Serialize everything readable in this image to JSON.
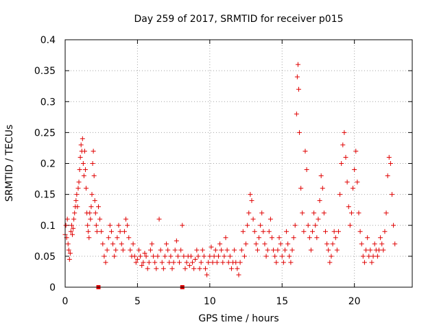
{
  "chart_data": {
    "type": "scatter",
    "title": "Day 259 of 2017, SRMTID for receiver p015",
    "xlabel": "GPS time / hours",
    "ylabel": "SRMTID / TECUs",
    "xlim": [
      0,
      24
    ],
    "ylim": [
      0,
      0.4
    ],
    "xticks": [
      0,
      5,
      10,
      15,
      20
    ],
    "yticks": [
      0,
      0.05,
      0.1,
      0.15,
      0.2,
      0.25,
      0.3,
      0.35,
      0.4
    ],
    "xtick_labels": [
      "0",
      "5",
      "10",
      "15",
      "20"
    ],
    "ytick_labels": [
      "0",
      "0.05",
      "0.1",
      "0.15",
      "0.2",
      "0.25",
      "0.3",
      "0.35",
      "0.4"
    ],
    "grid": true,
    "marker": "+",
    "color": "#e00000",
    "zero_markers_x": [
      2.3,
      8.1
    ],
    "series": [
      {
        "name": "p015",
        "points": [
          [
            0.0,
            0.085
          ],
          [
            0.05,
            0.1
          ],
          [
            0.1,
            0.08
          ],
          [
            0.15,
            0.11
          ],
          [
            0.2,
            0.07
          ],
          [
            0.25,
            0.06
          ],
          [
            0.3,
            0.045
          ],
          [
            0.35,
            0.055
          ],
          [
            0.4,
            0.09
          ],
          [
            0.45,
            0.1
          ],
          [
            0.5,
            0.085
          ],
          [
            0.55,
            0.095
          ],
          [
            0.6,
            0.11
          ],
          [
            0.65,
            0.12
          ],
          [
            0.7,
            0.13
          ],
          [
            0.75,
            0.14
          ],
          [
            0.8,
            0.15
          ],
          [
            0.85,
            0.13
          ],
          [
            0.9,
            0.16
          ],
          [
            0.95,
            0.17
          ],
          [
            1.0,
            0.19
          ],
          [
            1.05,
            0.21
          ],
          [
            1.1,
            0.23
          ],
          [
            1.15,
            0.22
          ],
          [
            1.2,
            0.24
          ],
          [
            1.25,
            0.2
          ],
          [
            1.3,
            0.18
          ],
          [
            1.35,
            0.22
          ],
          [
            1.4,
            0.19
          ],
          [
            1.45,
            0.16
          ],
          [
            1.5,
            0.12
          ],
          [
            1.55,
            0.1
          ],
          [
            1.6,
            0.09
          ],
          [
            1.65,
            0.08
          ],
          [
            1.7,
            0.12
          ],
          [
            1.75,
            0.11
          ],
          [
            1.8,
            0.13
          ],
          [
            1.85,
            0.15
          ],
          [
            1.9,
            0.2
          ],
          [
            1.95,
            0.22
          ],
          [
            2.0,
            0.18
          ],
          [
            2.05,
            0.14
          ],
          [
            2.1,
            0.12
          ],
          [
            2.15,
            0.1
          ],
          [
            2.2,
            0.09
          ],
          [
            2.3,
            0.13
          ],
          [
            2.4,
            0.11
          ],
          [
            2.5,
            0.09
          ],
          [
            2.6,
            0.07
          ],
          [
            2.7,
            0.05
          ],
          [
            2.8,
            0.04
          ],
          [
            2.9,
            0.06
          ],
          [
            3.0,
            0.08
          ],
          [
            3.1,
            0.1
          ],
          [
            3.2,
            0.09
          ],
          [
            3.3,
            0.07
          ],
          [
            3.4,
            0.05
          ],
          [
            3.5,
            0.06
          ],
          [
            3.6,
            0.08
          ],
          [
            3.7,
            0.1
          ],
          [
            3.8,
            0.09
          ],
          [
            3.9,
            0.07
          ],
          [
            4.0,
            0.06
          ],
          [
            4.1,
            0.09
          ],
          [
            4.2,
            0.11
          ],
          [
            4.3,
            0.1
          ],
          [
            4.4,
            0.08
          ],
          [
            4.5,
            0.06
          ],
          [
            4.6,
            0.05
          ],
          [
            4.7,
            0.07
          ],
          [
            4.8,
            0.05
          ],
          [
            4.9,
            0.04
          ],
          [
            5.0,
            0.045
          ],
          [
            5.1,
            0.06
          ],
          [
            5.2,
            0.05
          ],
          [
            5.3,
            0.035
          ],
          [
            5.4,
            0.04
          ],
          [
            5.5,
            0.055
          ],
          [
            5.6,
            0.05
          ],
          [
            5.7,
            0.03
          ],
          [
            5.8,
            0.04
          ],
          [
            5.9,
            0.06
          ],
          [
            6.0,
            0.07
          ],
          [
            6.1,
            0.05
          ],
          [
            6.2,
            0.04
          ],
          [
            6.3,
            0.03
          ],
          [
            6.4,
            0.05
          ],
          [
            6.5,
            0.11
          ],
          [
            6.6,
            0.06
          ],
          [
            6.7,
            0.04
          ],
          [
            6.8,
            0.03
          ],
          [
            6.9,
            0.05
          ],
          [
            7.0,
            0.07
          ],
          [
            7.1,
            0.06
          ],
          [
            7.2,
            0.04
          ],
          [
            7.3,
            0.05
          ],
          [
            7.4,
            0.03
          ],
          [
            7.5,
            0.04
          ],
          [
            7.6,
            0.06
          ],
          [
            7.7,
            0.075
          ],
          [
            7.8,
            0.05
          ],
          [
            7.9,
            0.04
          ],
          [
            8.0,
            0.06
          ],
          [
            8.1,
            0.1
          ],
          [
            8.2,
            0.05
          ],
          [
            8.3,
            0.03
          ],
          [
            8.4,
            0.04
          ],
          [
            8.5,
            0.05
          ],
          [
            8.6,
            0.035
          ],
          [
            8.7,
            0.05
          ],
          [
            8.8,
            0.04
          ],
          [
            8.9,
            0.03
          ],
          [
            9.0,
            0.045
          ],
          [
            9.1,
            0.06
          ],
          [
            9.2,
            0.05
          ],
          [
            9.3,
            0.03
          ],
          [
            9.4,
            0.04
          ],
          [
            9.5,
            0.06
          ],
          [
            9.6,
            0.05
          ],
          [
            9.7,
            0.03
          ],
          [
            9.8,
            0.02
          ],
          [
            9.9,
            0.04
          ],
          [
            10.0,
            0.05
          ],
          [
            10.1,
            0.065
          ],
          [
            10.2,
            0.04
          ],
          [
            10.3,
            0.05
          ],
          [
            10.4,
            0.06
          ],
          [
            10.5,
            0.04
          ],
          [
            10.6,
            0.05
          ],
          [
            10.7,
            0.07
          ],
          [
            10.8,
            0.06
          ],
          [
            10.9,
            0.04
          ],
          [
            11.0,
            0.05
          ],
          [
            11.1,
            0.08
          ],
          [
            11.2,
            0.06
          ],
          [
            11.3,
            0.04
          ],
          [
            11.4,
            0.05
          ],
          [
            11.5,
            0.03
          ],
          [
            11.6,
            0.04
          ],
          [
            11.7,
            0.06
          ],
          [
            11.8,
            0.04
          ],
          [
            11.9,
            0.03
          ],
          [
            12.0,
            0.02
          ],
          [
            12.1,
            0.04
          ],
          [
            12.2,
            0.06
          ],
          [
            12.3,
            0.09
          ],
          [
            12.4,
            0.05
          ],
          [
            12.5,
            0.07
          ],
          [
            12.6,
            0.1
          ],
          [
            12.7,
            0.12
          ],
          [
            12.8,
            0.15
          ],
          [
            12.9,
            0.14
          ],
          [
            13.0,
            0.11
          ],
          [
            13.1,
            0.09
          ],
          [
            13.2,
            0.07
          ],
          [
            13.3,
            0.06
          ],
          [
            13.4,
            0.08
          ],
          [
            13.5,
            0.1
          ],
          [
            13.6,
            0.12
          ],
          [
            13.7,
            0.09
          ],
          [
            13.8,
            0.07
          ],
          [
            13.9,
            0.05
          ],
          [
            14.0,
            0.06
          ],
          [
            14.1,
            0.09
          ],
          [
            14.2,
            0.11
          ],
          [
            14.3,
            0.08
          ],
          [
            14.4,
            0.06
          ],
          [
            14.5,
            0.05
          ],
          [
            14.6,
            0.04
          ],
          [
            14.7,
            0.06
          ],
          [
            14.8,
            0.08
          ],
          [
            14.9,
            0.07
          ],
          [
            15.0,
            0.05
          ],
          [
            15.1,
            0.04
          ],
          [
            15.2,
            0.06
          ],
          [
            15.3,
            0.09
          ],
          [
            15.4,
            0.07
          ],
          [
            15.5,
            0.05
          ],
          [
            15.6,
            0.04
          ],
          [
            15.7,
            0.06
          ],
          [
            15.8,
            0.08
          ],
          [
            15.9,
            0.1
          ],
          [
            16.0,
            0.28
          ],
          [
            16.05,
            0.34
          ],
          [
            16.1,
            0.36
          ],
          [
            16.15,
            0.32
          ],
          [
            16.2,
            0.25
          ],
          [
            16.3,
            0.16
          ],
          [
            16.4,
            0.12
          ],
          [
            16.5,
            0.09
          ],
          [
            16.6,
            0.22
          ],
          [
            16.7,
            0.19
          ],
          [
            16.8,
            0.1
          ],
          [
            16.9,
            0.08
          ],
          [
            17.0,
            0.06
          ],
          [
            17.1,
            0.09
          ],
          [
            17.2,
            0.12
          ],
          [
            17.3,
            0.1
          ],
          [
            17.4,
            0.08
          ],
          [
            17.5,
            0.11
          ],
          [
            17.6,
            0.14
          ],
          [
            17.7,
            0.18
          ],
          [
            17.8,
            0.16
          ],
          [
            17.9,
            0.12
          ],
          [
            18.0,
            0.09
          ],
          [
            18.1,
            0.07
          ],
          [
            18.2,
            0.06
          ],
          [
            18.3,
            0.04
          ],
          [
            18.4,
            0.05
          ],
          [
            18.5,
            0.07
          ],
          [
            18.6,
            0.09
          ],
          [
            18.7,
            0.08
          ],
          [
            18.8,
            0.06
          ],
          [
            18.9,
            0.09
          ],
          [
            19.0,
            0.15
          ],
          [
            19.1,
            0.2
          ],
          [
            19.2,
            0.23
          ],
          [
            19.3,
            0.25
          ],
          [
            19.4,
            0.21
          ],
          [
            19.5,
            0.17
          ],
          [
            19.6,
            0.13
          ],
          [
            19.7,
            0.1
          ],
          [
            19.8,
            0.12
          ],
          [
            19.9,
            0.16
          ],
          [
            20.0,
            0.19
          ],
          [
            20.1,
            0.22
          ],
          [
            20.2,
            0.17
          ],
          [
            20.3,
            0.12
          ],
          [
            20.4,
            0.09
          ],
          [
            20.5,
            0.07
          ],
          [
            20.6,
            0.05
          ],
          [
            20.7,
            0.04
          ],
          [
            20.8,
            0.06
          ],
          [
            20.9,
            0.08
          ],
          [
            21.0,
            0.05
          ],
          [
            21.1,
            0.06
          ],
          [
            21.2,
            0.04
          ],
          [
            21.3,
            0.05
          ],
          [
            21.4,
            0.07
          ],
          [
            21.5,
            0.06
          ],
          [
            21.6,
            0.05
          ],
          [
            21.7,
            0.06
          ],
          [
            21.8,
            0.08
          ],
          [
            21.9,
            0.07
          ],
          [
            22.0,
            0.06
          ],
          [
            22.1,
            0.09
          ],
          [
            22.2,
            0.12
          ],
          [
            22.3,
            0.18
          ],
          [
            22.4,
            0.21
          ],
          [
            22.5,
            0.2
          ],
          [
            22.6,
            0.15
          ],
          [
            22.7,
            0.1
          ],
          [
            22.8,
            0.07
          ]
        ]
      }
    ]
  }
}
